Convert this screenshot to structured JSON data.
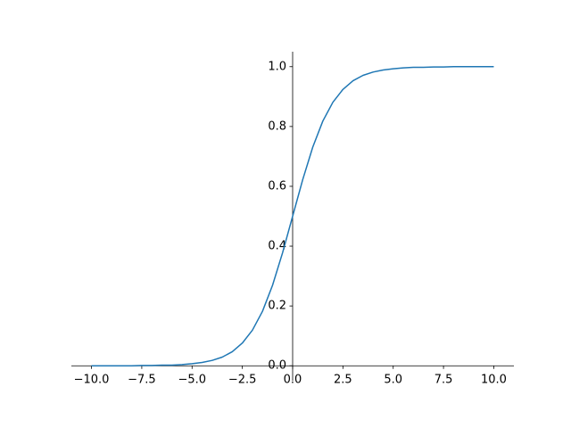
{
  "chart_data": {
    "type": "line",
    "x": [
      -10,
      -9.5,
      -9,
      -8.5,
      -8,
      -7.5,
      -7,
      -6.5,
      -6,
      -5.5,
      -5,
      -4.5,
      -4,
      -3.5,
      -3,
      -2.5,
      -2,
      -1.5,
      -1,
      -0.5,
      0,
      0.5,
      1,
      1.5,
      2,
      2.5,
      3,
      3.5,
      4,
      4.5,
      5,
      5.5,
      6,
      6.5,
      7,
      7.5,
      8,
      8.5,
      9,
      9.5,
      10
    ],
    "series": [
      {
        "color": "#1f77b4",
        "values": [
          0.0,
          0.0,
          0.0,
          0.0,
          0.0,
          0.001,
          0.001,
          0.002,
          0.002,
          0.004,
          0.007,
          0.011,
          0.018,
          0.029,
          0.047,
          0.076,
          0.119,
          0.182,
          0.269,
          0.378,
          0.5,
          0.622,
          0.731,
          0.818,
          0.881,
          0.924,
          0.953,
          0.971,
          0.982,
          0.989,
          0.993,
          0.996,
          0.998,
          0.998,
          0.999,
          0.999,
          1.0,
          1.0,
          1.0,
          1.0,
          1.0
        ]
      }
    ],
    "xlim": [
      -11,
      11
    ],
    "ylim": [
      -0.05,
      1.05
    ],
    "xticks": [
      {
        "value": -10,
        "label": "−10.0"
      },
      {
        "value": -7.5,
        "label": "−7.5"
      },
      {
        "value": -5,
        "label": "−5.0"
      },
      {
        "value": -2.5,
        "label": "−2.5"
      },
      {
        "value": 0,
        "label": "0.0"
      },
      {
        "value": 2.5,
        "label": "2.5"
      },
      {
        "value": 5,
        "label": "5.0"
      },
      {
        "value": 7.5,
        "label": "7.5"
      },
      {
        "value": 10,
        "label": "10.0"
      }
    ],
    "yticks": [
      {
        "value": 0,
        "label": "0.0"
      },
      {
        "value": 0.2,
        "label": "0.2"
      },
      {
        "value": 0.4,
        "label": "0.4"
      },
      {
        "value": 0.6,
        "label": "0.6"
      },
      {
        "value": 0.8,
        "label": "0.8"
      },
      {
        "value": 1,
        "label": "1.0"
      }
    ],
    "grid": false
  }
}
